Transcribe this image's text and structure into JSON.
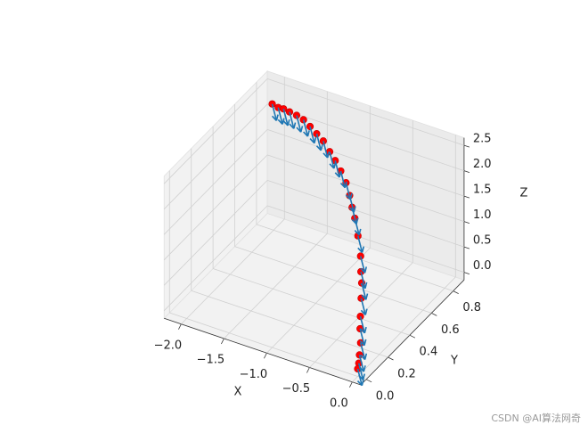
{
  "chart_data": {
    "type": "scatter3d",
    "xlabel": "X",
    "ylabel": "Y",
    "zlabel": "Z",
    "xlim": [
      -2.2,
      0.1
    ],
    "ylim": [
      -0.05,
      0.9
    ],
    "zlim": [
      -0.15,
      2.65
    ],
    "xticks": [
      {
        "value": -2,
        "label": "−2.0"
      },
      {
        "value": -1.5,
        "label": "−1.5"
      },
      {
        "value": -1,
        "label": "−1.0"
      },
      {
        "value": -0.5,
        "label": "−0.5"
      },
      {
        "value": 0,
        "label": "0.0"
      }
    ],
    "yticks": [
      {
        "value": 0,
        "label": "0.0"
      },
      0.2,
      0.4,
      0.6,
      0.8
    ],
    "zticks": [
      {
        "value": 0,
        "label": "0.0"
      },
      0.5,
      {
        "value": 1,
        "label": "1.0"
      },
      1.5,
      {
        "value": 2,
        "label": "2.0"
      },
      2.5
    ],
    "grid": true,
    "series": [
      {
        "color": "#ff0000",
        "arrow_color": "#1f77b4",
        "x": [
          -1.94,
          -1.87,
          -1.82,
          -1.75,
          -1.68,
          -1.6,
          -1.51,
          -1.42,
          -1.33,
          -1.23,
          -1.14,
          -1.05,
          -0.95,
          -0.87,
          -0.79,
          -0.72,
          -0.62,
          -0.5,
          -0.42,
          -0.36,
          -0.29,
          -0.21,
          -0.15,
          -0.08,
          -0.03,
          0,
          0
        ],
        "y": [
          0.74,
          0.74,
          0.75,
          0.75,
          0.76,
          0.76,
          0.75,
          0.74,
          0.73,
          0.71,
          0.69,
          0.67,
          0.64,
          0.61,
          0.57,
          0.54,
          0.49,
          0.42,
          0.36,
          0.32,
          0.26,
          0.19,
          0.14,
          0.09,
          0.04,
          0.01,
          0
        ],
        "z": [
          2.5,
          2.47,
          2.45,
          2.43,
          2.38,
          2.34,
          2.28,
          2.21,
          2.14,
          2.03,
          1.95,
          1.84,
          1.73,
          1.59,
          1.49,
          1.38,
          1.2,
          1.02,
          0.89,
          0.79,
          0.66,
          0.5,
          0.4,
          0.27,
          0.17,
          0.09,
          0
        ],
        "u": [
          0.05,
          0.05,
          0.05,
          0.05,
          0.05,
          0.05,
          0.05,
          0.05,
          0.05,
          0.05,
          0.05,
          0.05,
          0.05,
          0.05,
          0.05,
          0.05,
          0.05,
          0.05,
          0.05,
          0.05,
          0.05,
          0.05,
          0.05,
          0.05,
          0.05,
          0.05,
          0.05
        ],
        "v": [
          0,
          0,
          0,
          0,
          0,
          0,
          0,
          0,
          0,
          0,
          0,
          0,
          0,
          0,
          0,
          0,
          0,
          0,
          0,
          0,
          0,
          0,
          0,
          0,
          0,
          0,
          0
        ],
        "w": [
          -0.3,
          -0.3,
          -0.3,
          -0.3,
          -0.3,
          -0.3,
          -0.3,
          -0.3,
          -0.3,
          -0.3,
          -0.3,
          -0.3,
          -0.3,
          -0.3,
          -0.3,
          -0.3,
          -0.3,
          -0.3,
          -0.3,
          -0.3,
          -0.3,
          -0.3,
          -0.3,
          -0.3,
          -0.3,
          -0.3,
          -0.3
        ]
      }
    ]
  },
  "watermark": "CSDN @AI算法网奇"
}
